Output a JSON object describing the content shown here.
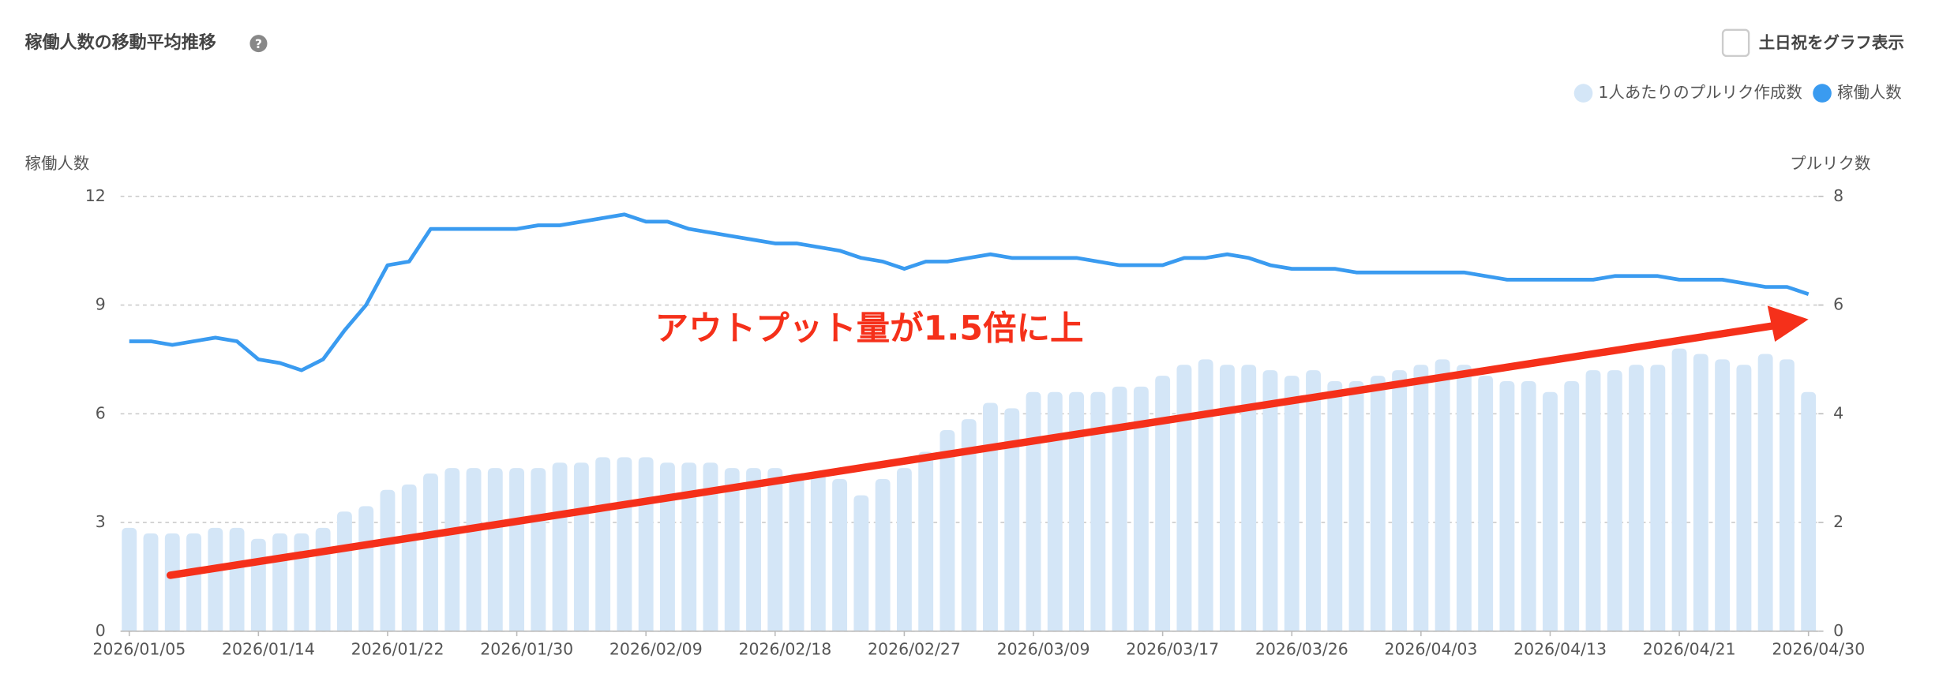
{
  "chart_data": {
    "type": "combo",
    "title": "稼働人数の移動平均推移",
    "help_icon": "?",
    "checkbox_label": "土日祝をグラフ表示",
    "y_label": "稼働人数",
    "y2_label": "プルリク数",
    "annotation": "アウトプット量が1.5倍に上",
    "categories": [
      "2026/01/05",
      null,
      null,
      null,
      null,
      null,
      "2026/01/14",
      null,
      null,
      null,
      null,
      null,
      "2026/01/22",
      null,
      null,
      null,
      null,
      null,
      "2026/01/30",
      null,
      null,
      null,
      null,
      null,
      "2026/02/09",
      null,
      null,
      null,
      null,
      null,
      "2026/02/18",
      null,
      null,
      null,
      null,
      null,
      "2026/02/27",
      null,
      null,
      null,
      null,
      null,
      "2026/03/09",
      null,
      null,
      null,
      null,
      null,
      "2026/03/17",
      null,
      null,
      null,
      null,
      null,
      "2026/03/26",
      null,
      null,
      null,
      null,
      null,
      "2026/04/03",
      null,
      null,
      null,
      null,
      null,
      "2026/04/13",
      null,
      null,
      null,
      null,
      null,
      "2026/04/21",
      null,
      null,
      null,
      null,
      null,
      "2026/04/30"
    ],
    "series": [
      {
        "name": "1人あたりのプルリク作成数",
        "type": "bar",
        "axis": "y2",
        "color": "#d4e6f7",
        "values": [
          1.9,
          1.8,
          1.8,
          1.8,
          1.9,
          1.9,
          1.7,
          1.8,
          1.8,
          1.9,
          2.2,
          2.3,
          2.6,
          2.7,
          2.9,
          3.0,
          3.0,
          3.0,
          3.0,
          3.0,
          3.1,
          3.1,
          3.2,
          3.2,
          3.2,
          3.1,
          3.1,
          3.1,
          3.0,
          3.0,
          3.0,
          2.9,
          2.9,
          2.8,
          2.5,
          2.8,
          3.0,
          3.3,
          3.7,
          3.9,
          4.2,
          4.1,
          4.4,
          4.4,
          4.4,
          4.4,
          4.5,
          4.5,
          4.7,
          4.9,
          5.0,
          4.9,
          4.9,
          4.8,
          4.7,
          4.8,
          4.6,
          4.6,
          4.7,
          4.8,
          4.9,
          5.0,
          4.9,
          4.7,
          4.6,
          4.6,
          4.4,
          4.6,
          4.8,
          4.8,
          4.9,
          4.9,
          5.2,
          5.1,
          5.0,
          4.9,
          5.1,
          5.0,
          4.4
        ]
      },
      {
        "name": "稼働人数",
        "type": "line",
        "axis": "y",
        "color": "#3a9bf0",
        "values": [
          8.0,
          8.0,
          7.9,
          8.0,
          8.1,
          8.0,
          7.5,
          7.4,
          7.2,
          7.5,
          8.3,
          9.0,
          10.1,
          10.2,
          11.1,
          11.1,
          11.1,
          11.1,
          11.1,
          11.2,
          11.2,
          11.3,
          11.4,
          11.5,
          11.3,
          11.3,
          11.1,
          11.0,
          10.9,
          10.8,
          10.7,
          10.7,
          10.6,
          10.5,
          10.3,
          10.2,
          10.0,
          10.2,
          10.2,
          10.3,
          10.4,
          10.3,
          10.3,
          10.3,
          10.3,
          10.2,
          10.1,
          10.1,
          10.1,
          10.3,
          10.3,
          10.4,
          10.3,
          10.1,
          10.0,
          10.0,
          10.0,
          9.9,
          9.9,
          9.9,
          9.9,
          9.9,
          9.9,
          9.8,
          9.7,
          9.7,
          9.7,
          9.7,
          9.7,
          9.8,
          9.8,
          9.8,
          9.7,
          9.7,
          9.7,
          9.6,
          9.5,
          9.5,
          9.3
        ]
      }
    ],
    "ylim": [
      0,
      12
    ],
    "yticks": [
      0,
      3,
      6,
      9,
      12
    ],
    "y2lim": [
      0,
      8
    ],
    "y2ticks": [
      0,
      2,
      4,
      6,
      8
    ],
    "grid": true,
    "legend": "top-right"
  }
}
